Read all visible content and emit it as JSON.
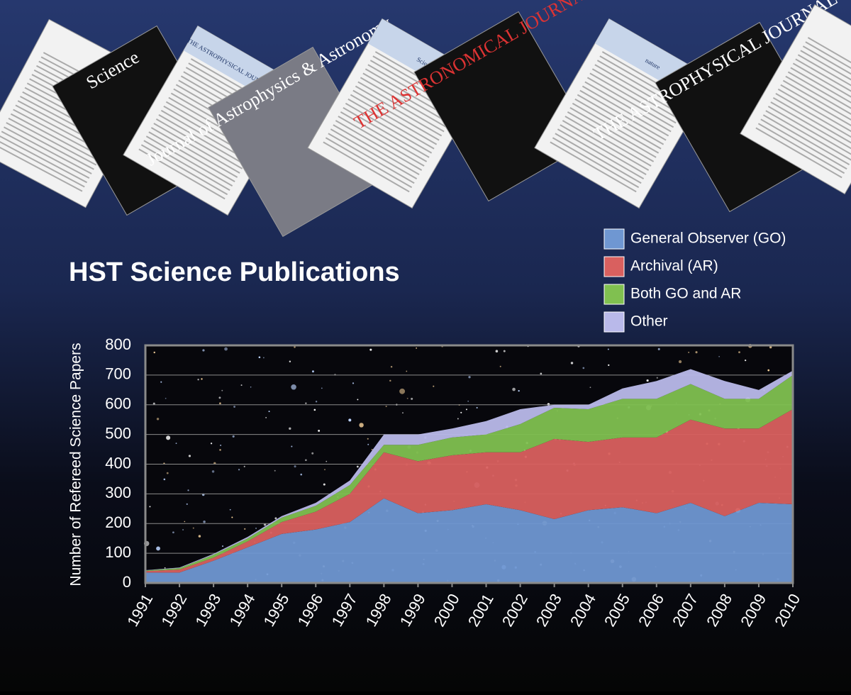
{
  "cover_titles": [
    "Science",
    "THE ASTROPHYSICAL JOURNAL LETTERS",
    "Journal of Astrophysics & Astronomy",
    "Science",
    "THE ASTRONOMICAL JOURNAL",
    "nature",
    "THE ASTROPHYSICAL JOURNAL"
  ],
  "chart_data": {
    "type": "stacked-area",
    "title": "HST Science Publications",
    "y_label": "Number of Refereed Science Papers",
    "x": [
      1991,
      1992,
      1993,
      1994,
      1995,
      1996,
      1997,
      1998,
      1999,
      2000,
      2001,
      2002,
      2003,
      2004,
      2005,
      2006,
      2007,
      2008,
      2009,
      2010
    ],
    "xlim": [
      1991,
      2010
    ],
    "xticks": [
      1991,
      1992,
      1993,
      1994,
      1995,
      1996,
      1997,
      1998,
      1999,
      2000,
      2001,
      2002,
      2003,
      2004,
      2005,
      2006,
      2007,
      2008,
      2009,
      2010
    ],
    "ylim": [
      0,
      800
    ],
    "yticks": [
      0,
      100,
      200,
      300,
      400,
      500,
      600,
      700,
      800
    ],
    "grid": true,
    "series": [
      {
        "name": "General Observer (GO)",
        "color": "#6f97d2",
        "values": [
          35,
          35,
          75,
          120,
          165,
          180,
          205,
          285,
          235,
          245,
          265,
          245,
          215,
          245,
          255,
          235,
          270,
          225,
          270,
          265
        ]
      },
      {
        "name": "Archival (AR)",
        "color": "#d9605f",
        "values": [
          5,
          10,
          10,
          20,
          40,
          60,
          95,
          155,
          175,
          185,
          175,
          195,
          270,
          230,
          235,
          255,
          280,
          295,
          250,
          320
        ]
      },
      {
        "name": "Both GO and AR",
        "color": "#80c050",
        "values": [
          2,
          5,
          10,
          10,
          15,
          20,
          30,
          25,
          55,
          60,
          60,
          95,
          105,
          110,
          130,
          130,
          120,
          100,
          100,
          115
        ]
      },
      {
        "name": "Other",
        "color": "#b9b9ea",
        "values": [
          1,
          2,
          3,
          5,
          5,
          10,
          15,
          35,
          35,
          30,
          45,
          50,
          10,
          15,
          35,
          60,
          50,
          60,
          30,
          15
        ]
      }
    ]
  }
}
